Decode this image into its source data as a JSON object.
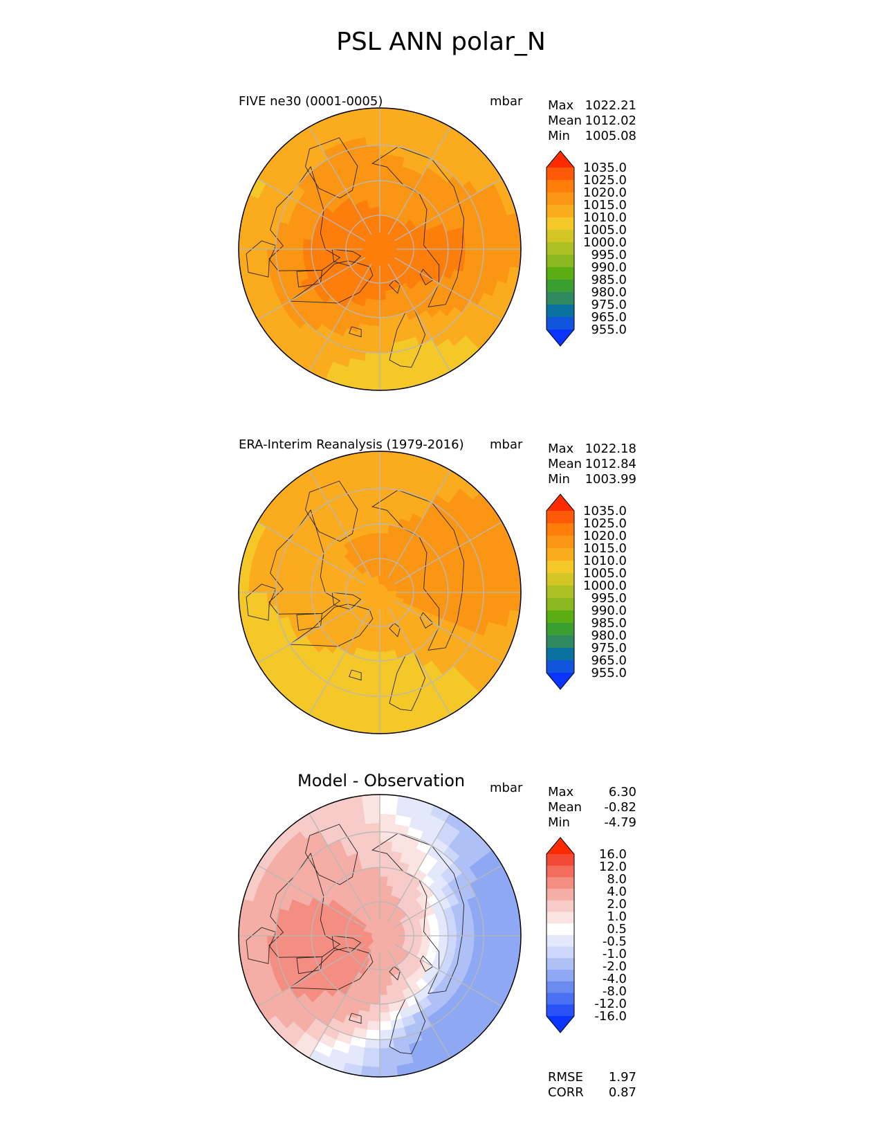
{
  "figure": {
    "title": "PSL ANN polar_N"
  },
  "colors": {
    "grid": "#b8b8b8",
    "coast": "#222222",
    "abs_levels": [
      "#0a34ff",
      "#1055dc",
      "#0a72a0",
      "#2f8a62",
      "#3b9e30",
      "#5aae14",
      "#8ab81e",
      "#aebf25",
      "#d2c625",
      "#f5c82a",
      "#fbab1e",
      "#fa9614",
      "#fd7e0b",
      "#ff5a07",
      "#ff2b00"
    ],
    "diff_levels": [
      "#0a34ff",
      "#2a52f7",
      "#4a70f3",
      "#6a8cf1",
      "#8ea8f3",
      "#aec0f6",
      "#ccd7f9",
      "#e3e8fb",
      "#ffffff",
      "#fbe3e1",
      "#f7ccc8",
      "#f4aea6",
      "#f58e82",
      "#f36c5c",
      "#f24a36",
      "#ff2b00"
    ]
  },
  "chart_data": [
    {
      "type": "heatmap",
      "panel": "test",
      "title": "FIVE ne30 (0001-0005)",
      "units": "mbar",
      "projection": "north polar stereographic",
      "stats": [
        {
          "label": "Max",
          "value": "1022.21"
        },
        {
          "label": "Mean",
          "value": "1012.02"
        },
        {
          "label": "Min",
          "value": "1005.08"
        }
      ],
      "colorbar_ticks": [
        "1035.0",
        "1025.0",
        "1020.0",
        "1015.0",
        "1010.0",
        "1005.0",
        "1000.0",
        "995.0",
        "990.0",
        "985.0",
        "980.0",
        "975.0",
        "965.0",
        "955.0"
      ],
      "field": {
        "base": 1011,
        "features": [
          {
            "lon": 60,
            "colat": 20,
            "value": 1016
          },
          {
            "lon": 210,
            "colat": 20,
            "value": 1016
          },
          {
            "lon": 290,
            "colat": 15,
            "value": 1018
          },
          {
            "lon": 330,
            "colat": 15,
            "value": 1017
          },
          {
            "lon": 245,
            "colat": 45,
            "value": 1008
          },
          {
            "lon": 30,
            "colat": 35,
            "value": 1007
          },
          {
            "lon": 350,
            "colat": 30,
            "value": 1007
          },
          {
            "lon": 180,
            "colat": 40,
            "value": 1012
          },
          {
            "lon": 100,
            "colat": 25,
            "value": 1017
          }
        ]
      }
    },
    {
      "type": "heatmap",
      "panel": "reference",
      "title": "ERA-Interim Reanalysis (1979-2016)",
      "units": "mbar",
      "projection": "north polar stereographic",
      "stats": [
        {
          "label": "Max",
          "value": "1022.18"
        },
        {
          "label": "Mean",
          "value": "1012.84"
        },
        {
          "label": "Min",
          "value": "1003.99"
        }
      ],
      "colorbar_ticks": [
        "1035.0",
        "1025.0",
        "1020.0",
        "1015.0",
        "1010.0",
        "1005.0",
        "1000.0",
        "995.0",
        "990.0",
        "985.0",
        "980.0",
        "975.0",
        "965.0",
        "955.0"
      ],
      "field": {
        "base": 1013,
        "features": [
          {
            "lon": 60,
            "colat": 20,
            "value": 1015
          },
          {
            "lon": 210,
            "colat": 20,
            "value": 1015
          },
          {
            "lon": 290,
            "colat": 20,
            "value": 1014
          },
          {
            "lon": 330,
            "colat": 20,
            "value": 1013
          },
          {
            "lon": 245,
            "colat": 45,
            "value": 1009
          },
          {
            "lon": 300,
            "colat": 45,
            "value": 1004
          },
          {
            "lon": 30,
            "colat": 35,
            "value": 1009
          },
          {
            "lon": 355,
            "colat": 30,
            "value": 1008
          },
          {
            "lon": 110,
            "colat": 30,
            "value": 1018
          },
          {
            "lon": 180,
            "colat": 40,
            "value": 1012
          }
        ]
      }
    },
    {
      "type": "heatmap",
      "panel": "difference",
      "title": "Model - Observation",
      "units": "mbar",
      "projection": "north polar stereographic",
      "stats": [
        {
          "label": "Max",
          "value": "6.30"
        },
        {
          "label": "Mean",
          "value": "-0.82"
        },
        {
          "label": "Min",
          "value": "-4.79"
        }
      ],
      "extra_stats": [
        {
          "label": "RMSE",
          "value": "1.97"
        },
        {
          "label": "CORR",
          "value": "0.87"
        }
      ],
      "colorbar_ticks": [
        "16.0",
        "12.0",
        "8.0",
        "4.0",
        "2.0",
        "1.0",
        "0.5",
        "-0.5",
        "-1.0",
        "-2.0",
        "-4.0",
        "-8.0",
        "-12.0",
        "-16.0"
      ],
      "field": {
        "base": -1.6,
        "features": [
          {
            "lon": 290,
            "colat": 30,
            "value": 5.5
          },
          {
            "lon": 240,
            "colat": 30,
            "value": 3.0
          },
          {
            "lon": 300,
            "colat": 15,
            "value": 3.0
          },
          {
            "lon": 0,
            "colat": 12,
            "value": 1.6
          },
          {
            "lon": 180,
            "colat": 8,
            "value": 1.2
          },
          {
            "lon": 160,
            "colat": 25,
            "value": 0.3
          },
          {
            "lon": 30,
            "colat": 30,
            "value": -3.5
          },
          {
            "lon": 120,
            "colat": 30,
            "value": -3.0
          },
          {
            "lon": 75,
            "colat": 40,
            "value": -2.5
          },
          {
            "lon": 205,
            "colat": 45,
            "value": 2.0
          }
        ]
      }
    }
  ]
}
